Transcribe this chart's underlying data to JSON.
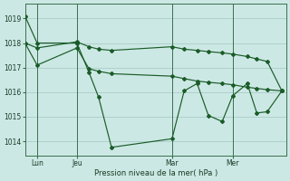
{
  "background_color": "#cce8e4",
  "grid_color": "#aaccc8",
  "line_color": "#1a5c28",
  "ylabel": "Pression niveau de la mer( hPa )",
  "ylim": [
    1013.4,
    1019.6
  ],
  "yticks": [
    1014,
    1015,
    1016,
    1017,
    1018,
    1019
  ],
  "xtick_labels": [
    "Lun",
    "Jeu",
    "Mar",
    "Mer"
  ],
  "xtick_positions": [
    22,
    68,
    178,
    248
  ],
  "vline_positions": [
    22,
    68,
    178,
    248
  ],
  "xmin": 8,
  "xmax": 310,
  "series": [
    {
      "x": [
        8,
        22,
        68,
        82,
        93,
        108,
        178,
        192,
        207,
        220,
        236,
        248,
        265,
        276,
        288,
        305
      ],
      "y": [
        1019.1,
        1018.0,
        1018.0,
        1016.8,
        1015.8,
        1013.75,
        1014.1,
        1016.05,
        1016.35,
        1015.05,
        1014.8,
        1015.85,
        1016.35,
        1015.15,
        1015.2,
        1016.05
      ]
    },
    {
      "x": [
        8,
        22,
        68,
        82,
        93,
        108,
        178,
        192,
        207,
        220,
        236,
        248,
        265,
        276,
        288,
        305
      ],
      "y": [
        1018.0,
        1017.8,
        1018.05,
        1017.85,
        1017.75,
        1017.7,
        1017.85,
        1017.75,
        1017.7,
        1017.65,
        1017.6,
        1017.55,
        1017.45,
        1017.35,
        1017.25,
        1016.05
      ]
    },
    {
      "x": [
        8,
        22,
        68,
        82,
        93,
        108,
        178,
        192,
        207,
        220,
        236,
        248,
        265,
        276,
        288,
        305
      ],
      "y": [
        1018.0,
        1017.1,
        1017.8,
        1016.95,
        1016.85,
        1016.75,
        1016.65,
        1016.55,
        1016.45,
        1016.4,
        1016.35,
        1016.3,
        1016.2,
        1016.15,
        1016.1,
        1016.05
      ]
    }
  ]
}
